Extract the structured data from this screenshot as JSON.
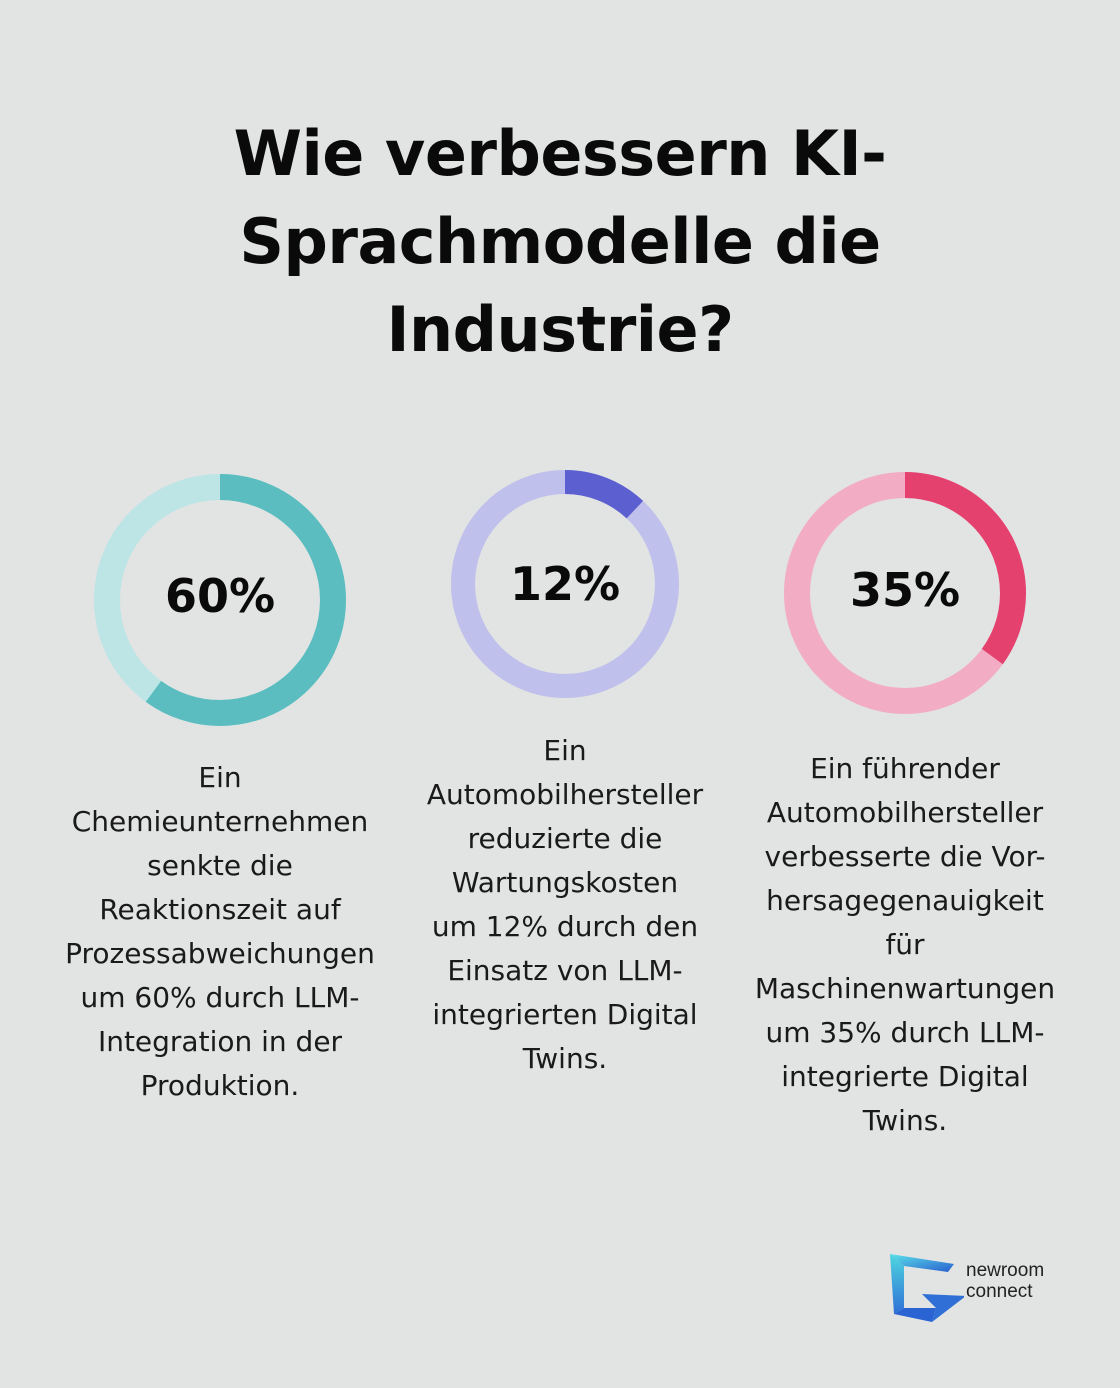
{
  "title_lines": [
    "Wie verbessern KI-",
    "Sprachmodelle die",
    "Industrie?"
  ],
  "stats": [
    {
      "percent_label": "60%",
      "value": 60,
      "colors": {
        "track": "#bde5e6",
        "fill": "#5bbdbf"
      },
      "description_lines": [
        "Ein",
        "Chemieunternehmen",
        "senkte die",
        "Reaktionszeit auf",
        "Prozessabweichungen",
        "um 60% durch LLM-",
        "Integration in der",
        "Produktion."
      ]
    },
    {
      "percent_label": "12%",
      "value": 12,
      "colors": {
        "track": "#bfc0ec",
        "fill": "#5b5fd0"
      },
      "description_lines": [
        "Ein",
        "Automobilhersteller",
        "reduzierte die",
        "Wartungskosten",
        "um 12% durch den",
        "Einsatz von LLM-",
        "integrierten Digital",
        "Twins."
      ]
    },
    {
      "percent_label": "35%",
      "value": 35,
      "colors": {
        "track": "#f2adc4",
        "fill": "#e4416f"
      },
      "description_lines": [
        "Ein führender",
        "Automobilhersteller",
        "verbesserte die Vor-",
        "hersagegenauigkeit",
        "für",
        "Maschinenwartungen",
        "um 35% durch LLM-",
        "integrierte Digital",
        "Twins."
      ]
    }
  ],
  "logo": {
    "name": "newroom-connect-logo",
    "text_lines": [
      "newroom",
      "connect"
    ],
    "colors": {
      "cyan": "#4fd6e0",
      "blue": "#2f6fd6"
    }
  }
}
